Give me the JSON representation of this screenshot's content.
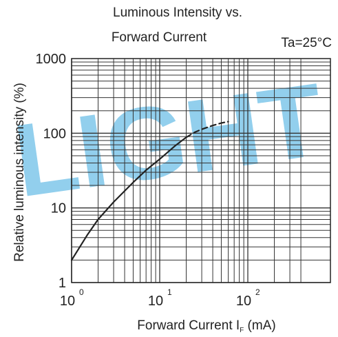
{
  "chart_data": {
    "type": "line",
    "title_line1": "Luminous Intensity vs.",
    "title_line2": "Forward Current",
    "condition": "Ta=25°C",
    "watermark": "LIGHT",
    "xlabel_main": "Forward Current  I",
    "xlabel_sub": "F",
    "xlabel_unit": " (mA)",
    "ylabel": "Relative luminous intensity (%)",
    "x_scale": "log",
    "y_scale": "log",
    "xlim": [
      1,
      400
    ],
    "ylim": [
      1,
      1000
    ],
    "grid": true,
    "x_ticks": [
      {
        "value": 1,
        "base": "10",
        "exp": "0"
      },
      {
        "value": 10,
        "base": "10",
        "exp": "1"
      },
      {
        "value": 100,
        "base": "10",
        "exp": "2"
      }
    ],
    "y_ticks": [
      {
        "value": 1,
        "label": "1"
      },
      {
        "value": 10,
        "label": "10"
      },
      {
        "value": 100,
        "label": "100"
      },
      {
        "value": 1000,
        "label": "1000"
      }
    ],
    "series": [
      {
        "style": "solid",
        "x": [
          1,
          1.5,
          2,
          3,
          5,
          7,
          10,
          15,
          20
        ],
        "y": [
          2,
          4.3,
          7,
          12,
          22,
          32,
          45,
          68,
          88
        ]
      },
      {
        "style": "dashed",
        "x": [
          20,
          25,
          30,
          40,
          50,
          60
        ],
        "y": [
          88,
          103,
          113,
          127,
          137,
          143
        ]
      }
    ]
  }
}
